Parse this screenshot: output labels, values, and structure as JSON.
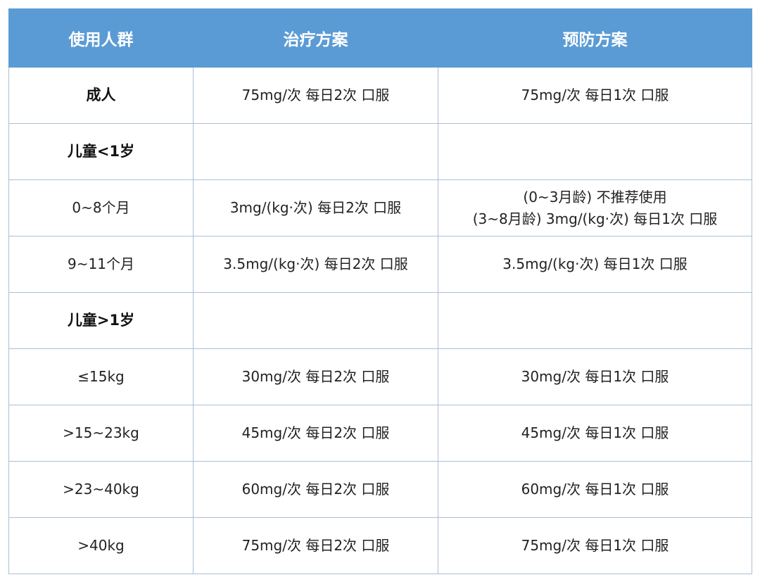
{
  "colors": {
    "header_bg": "#5b9bd5",
    "header_text": "#ffffff",
    "border": "#a9c0d6"
  },
  "headers": [
    "使用人群",
    "治疗方案",
    "预防方案"
  ],
  "rows": [
    {
      "group": "成人",
      "bold": true,
      "treatment": "75mg/次 每日2次 口服",
      "prevention": "75mg/次 每日1次 口服"
    },
    {
      "group": "儿童<1岁",
      "bold": true,
      "treatment": "",
      "prevention": ""
    },
    {
      "group": "0~8个月",
      "bold": false,
      "treatment": "3mg/(kg·次) 每日2次 口服",
      "prevention": "(0~3月龄)  不推荐使用",
      "prevention2": "(3~8月龄) 3mg/(kg·次)  每日1次 口服"
    },
    {
      "group": "9~11个月",
      "bold": false,
      "treatment": "3.5mg/(kg·次)  每日2次 口服",
      "prevention": "3.5mg/(kg·次) 每日1次 口服"
    },
    {
      "group": "儿童>1岁",
      "bold": true,
      "treatment": "",
      "prevention": ""
    },
    {
      "group": "≤15kg",
      "bold": false,
      "treatment": "30mg/次 每日2次 口服",
      "prevention": "30mg/次 每日1次 口服"
    },
    {
      "group": ">15~23kg",
      "bold": false,
      "treatment": "45mg/次 每日2次 口服",
      "prevention": "45mg/次 每日1次 口服"
    },
    {
      "group": ">23~40kg",
      "bold": false,
      "treatment": "60mg/次 每日2次 口服",
      "prevention": "60mg/次 每日1次 口服"
    },
    {
      "group": ">40kg",
      "bold": false,
      "treatment": "75mg/次 每日2次 口服",
      "prevention": "75mg/次 每日1次 口服"
    }
  ]
}
